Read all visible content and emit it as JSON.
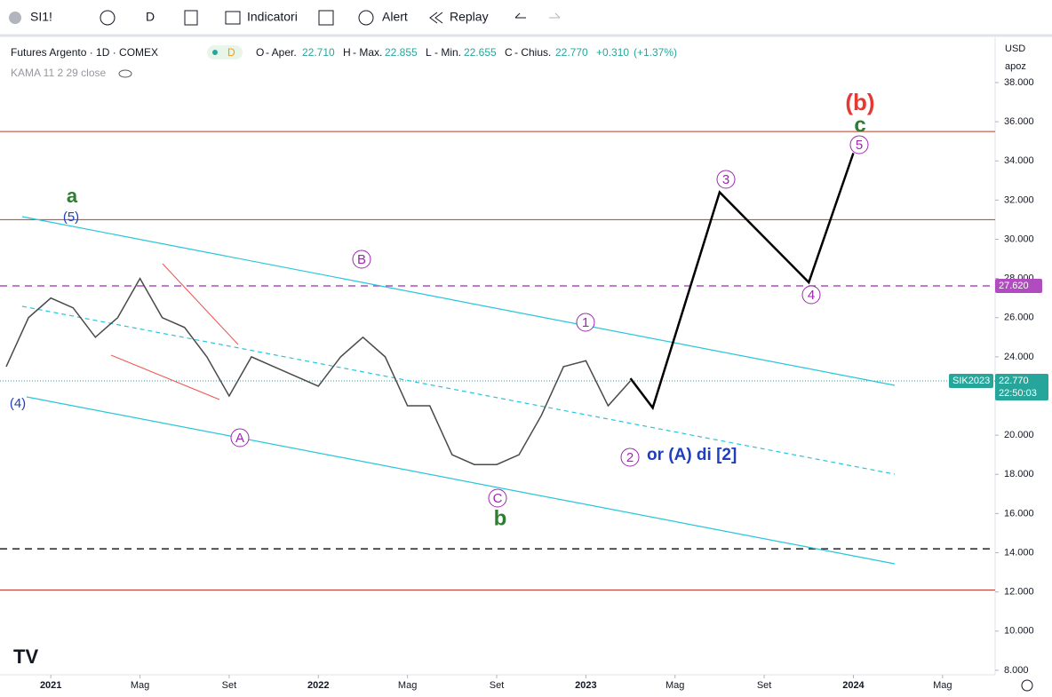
{
  "toolbar": {
    "symbol": "SI1!",
    "interval": "D",
    "indicators": "Indicatori",
    "alert": "Alert",
    "replay": "Replay"
  },
  "legend": {
    "title": "Futures Argento · 1D · COMEX",
    "badge": "D",
    "o_key": "O",
    "o_name": "- Aper.",
    "o": "22.710",
    "h_key": "H",
    "h_name": "- Max.",
    "h": "22.855",
    "l_key": "L",
    "l_name": "- Min.",
    "l": "22.655",
    "c_key": "C",
    "c_name": "- Chius.",
    "c": "22.770",
    "change": "+0.310",
    "change_pct": "(+1.37%)",
    "indicator": "KAMA 11 2 29 close"
  },
  "scale": {
    "currency": "USD",
    "mode": "apoz"
  },
  "wave_labels": [
    "a",
    "(5)",
    "(4)",
    "A",
    "B",
    "C",
    "b",
    "1",
    "2",
    "or (A) di [2]",
    "3",
    "4",
    "5",
    "c",
    "(b)"
  ],
  "chart_data": {
    "type": "line",
    "x": [
      "2020-11",
      "2020-12",
      "2021-01",
      "2021-02",
      "2021-03",
      "2021-04",
      "2021-05",
      "2021-06",
      "2021-07",
      "2021-08",
      "2021-09",
      "2021-10",
      "2021-11",
      "2021-12",
      "2022-01",
      "2022-02",
      "2022-03",
      "2022-04",
      "2022-05",
      "2022-06",
      "2022-07",
      "2022-08",
      "2022-09",
      "2022-10",
      "2022-11",
      "2022-12",
      "2023-01",
      "2023-02",
      "2023-03"
    ],
    "series": [
      {
        "name": "SIK2023",
        "color": "#4a4a4a",
        "values": [
          23.5,
          26,
          27,
          26.5,
          25,
          26,
          28,
          26,
          25.5,
          24,
          22,
          24,
          23.5,
          23,
          22.5,
          24,
          25,
          24,
          21.5,
          21.5,
          19,
          18.5,
          18.5,
          19,
          21,
          23.5,
          23.8,
          21.5,
          22.77
        ]
      }
    ],
    "projection": {
      "color": "#000000",
      "x": [
        "2023-03",
        "2023-04",
        "2023-07",
        "2023-11",
        "2024-01"
      ],
      "values": [
        22.9,
        21.4,
        32.4,
        27.8,
        34.4
      ]
    },
    "levels": [
      {
        "value": 35.5,
        "color": "#c0392b",
        "style": "solid"
      },
      {
        "value": 31,
        "color": "#c0392b",
        "style": "solid"
      },
      {
        "value": 27.62,
        "label": "27.620",
        "color": "#b04cc0",
        "style": "dashed"
      },
      {
        "value": 14.2,
        "color": "#222222",
        "style": "dashed"
      },
      {
        "value": 12.1,
        "color": "#c0392b",
        "style": "solid"
      }
    ],
    "last": {
      "value": 22.77,
      "label": "22.770",
      "symbol": "SIK2023",
      "countdown": "22:50:03",
      "color": "#26a69a"
    },
    "xlim": [
      "2020-11",
      "2024-07"
    ],
    "xticks": [
      {
        "value": "2021-01",
        "label": "2021"
      },
      {
        "value": "2021-05",
        "label": "Mag"
      },
      {
        "value": "2021-09",
        "label": "Set"
      },
      {
        "value": "2022-01",
        "label": "2022"
      },
      {
        "value": "2022-05",
        "label": "Mag"
      },
      {
        "value": "2022-09",
        "label": "Set"
      },
      {
        "value": "2023-01",
        "label": "2023"
      },
      {
        "value": "2023-05",
        "label": "Mag"
      },
      {
        "value": "2023-09",
        "label": "Set"
      },
      {
        "value": "2024-01",
        "label": "2024"
      },
      {
        "value": "2024-05",
        "label": "Mag"
      }
    ],
    "ylim": [
      7.77,
      40.31
    ],
    "yticks": [
      {
        "value": 8,
        "label": "8.000"
      },
      {
        "value": 10,
        "label": "10.000"
      },
      {
        "value": 12,
        "label": "12.000"
      },
      {
        "value": 14,
        "label": "14.000"
      },
      {
        "value": 16,
        "label": "16.000"
      },
      {
        "value": 18,
        "label": "18.000"
      },
      {
        "value": 20,
        "label": "20.000"
      },
      {
        "value": 22,
        "label": "22.000"
      },
      {
        "value": 24,
        "label": "24.000"
      },
      {
        "value": 26,
        "label": "26.000"
      },
      {
        "value": 28,
        "label": "28.000"
      },
      {
        "value": 30,
        "label": "30.000"
      },
      {
        "value": 32,
        "label": "32.000"
      },
      {
        "value": 34,
        "label": "34.000"
      },
      {
        "value": 36,
        "label": "36.000"
      },
      {
        "value": 38,
        "label": "38.000"
      }
    ],
    "grid": false
  }
}
